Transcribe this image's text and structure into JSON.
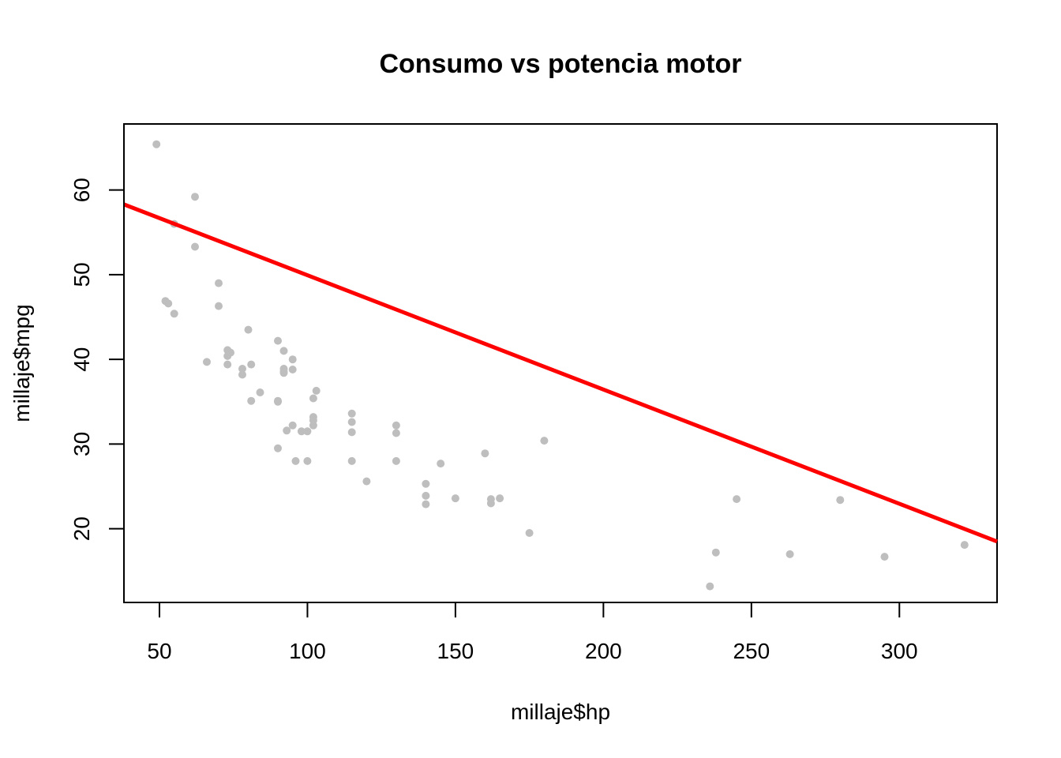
{
  "chart_data": {
    "type": "scatter",
    "title": "Consumo vs potencia motor",
    "xlabel": "millaje$hp",
    "ylabel": "millaje$mpg",
    "xlim": [
      38,
      333
    ],
    "ylim": [
      11.3,
      67.8
    ],
    "x_ticks": [
      50,
      100,
      150,
      200,
      250,
      300
    ],
    "y_ticks": [
      20,
      30,
      40,
      50,
      60
    ],
    "grid": false,
    "point_color": "#bebebe",
    "line_color": "#ff0000",
    "points": [
      [
        49,
        65.4
      ],
      [
        52,
        46.9
      ],
      [
        53,
        46.6
      ],
      [
        55,
        45.4
      ],
      [
        55,
        56.0
      ],
      [
        62,
        59.2
      ],
      [
        62,
        53.3
      ],
      [
        66,
        39.7
      ],
      [
        70,
        49.0
      ],
      [
        70,
        46.3
      ],
      [
        73,
        41.1
      ],
      [
        73,
        40.4
      ],
      [
        73,
        39.4
      ],
      [
        74,
        40.8
      ],
      [
        78,
        38.9
      ],
      [
        78,
        38.2
      ],
      [
        80,
        43.5
      ],
      [
        81,
        39.4
      ],
      [
        81,
        35.1
      ],
      [
        84,
        36.1
      ],
      [
        90,
        42.2
      ],
      [
        90,
        35.1
      ],
      [
        90,
        35.0
      ],
      [
        90,
        29.5
      ],
      [
        92,
        41.0
      ],
      [
        92,
        38.9
      ],
      [
        92,
        38.6
      ],
      [
        92,
        38.4
      ],
      [
        93,
        31.6
      ],
      [
        95,
        40.0
      ],
      [
        95,
        38.8
      ],
      [
        95,
        32.2
      ],
      [
        96,
        28.0
      ],
      [
        98,
        31.5
      ],
      [
        100,
        31.5
      ],
      [
        100,
        28.0
      ],
      [
        102,
        35.4
      ],
      [
        102,
        33.2
      ],
      [
        102,
        32.8
      ],
      [
        102,
        32.2
      ],
      [
        103,
        36.3
      ],
      [
        115,
        33.6
      ],
      [
        115,
        32.6
      ],
      [
        115,
        31.4
      ],
      [
        115,
        28.0
      ],
      [
        120,
        25.6
      ],
      [
        130,
        32.2
      ],
      [
        130,
        31.3
      ],
      [
        130,
        28.0
      ],
      [
        140,
        25.3
      ],
      [
        140,
        23.9
      ],
      [
        140,
        22.9
      ],
      [
        145,
        27.7
      ],
      [
        150,
        23.6
      ],
      [
        160,
        28.9
      ],
      [
        162,
        23.5
      ],
      [
        162,
        23.0
      ],
      [
        165,
        23.6
      ],
      [
        175,
        19.5
      ],
      [
        180,
        30.4
      ],
      [
        236,
        13.2
      ],
      [
        238,
        17.2
      ],
      [
        245,
        23.5
      ],
      [
        263,
        17.0
      ],
      [
        280,
        23.4
      ],
      [
        295,
        16.7
      ],
      [
        322,
        18.1
      ]
    ],
    "line": {
      "x": [
        38,
        333
      ],
      "y": [
        58.3,
        18.5
      ]
    }
  }
}
